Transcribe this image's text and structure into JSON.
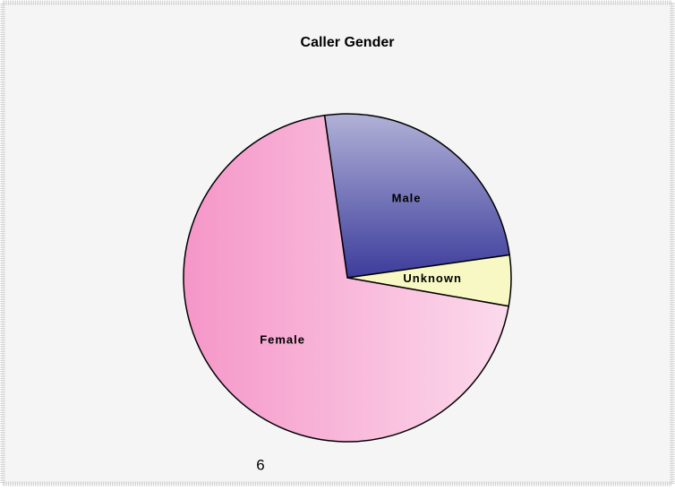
{
  "chart_data": {
    "type": "pie",
    "title": "Caller Gender",
    "categories": [
      "Male",
      "Unknown",
      "Female"
    ],
    "values": [
      25,
      5,
      70
    ],
    "colors": [
      "#3c3c9c",
      "#f8f8c4",
      "#f596c8"
    ]
  },
  "page_label": "6"
}
